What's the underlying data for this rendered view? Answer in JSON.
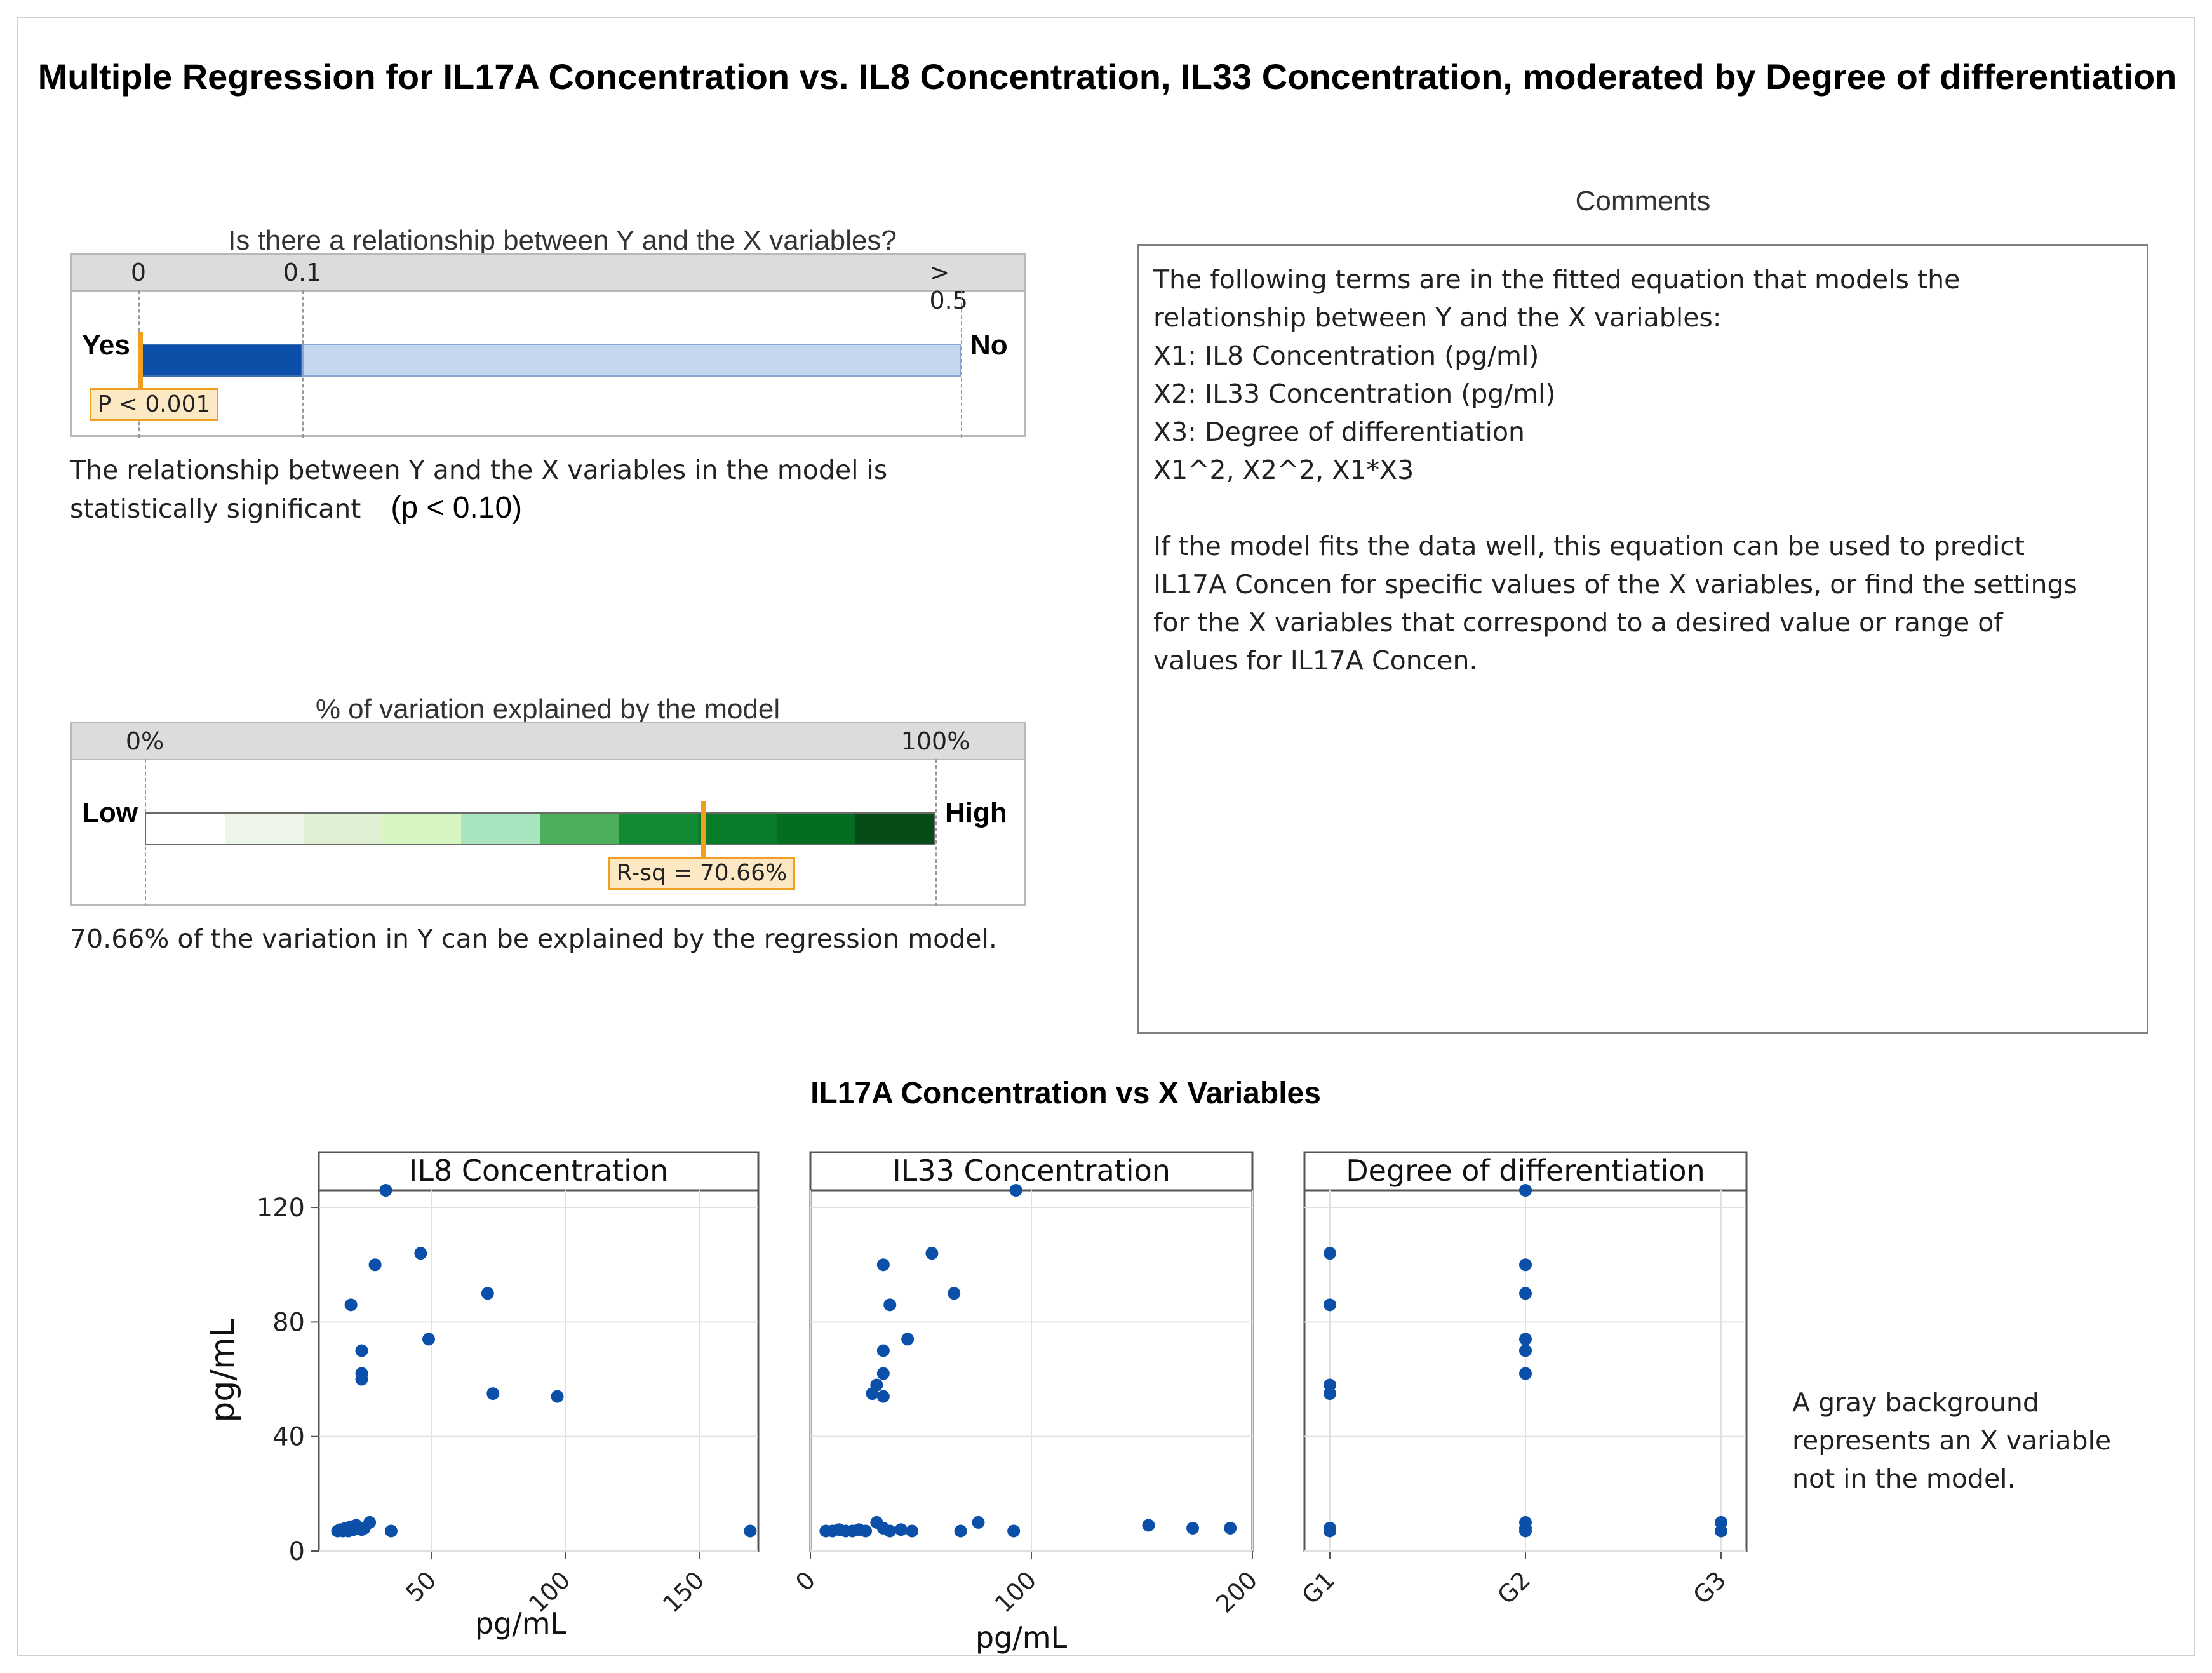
{
  "title": "Multiple Regression for IL17A Concentration vs. IL8 Concentration, IL33 Concentration, moderated by Degree of differentiation",
  "relationship": {
    "heading": "Is there a relationship between Y and the X variables?",
    "scale_ticks": [
      "0",
      "0.1",
      "> 0.5"
    ],
    "left_label": "Yes",
    "right_label": "No",
    "p_label": "P < 0.001",
    "p_value": 0.001,
    "colors": {
      "significant": "#0b4fa8",
      "not_significant": "#c4d6ee",
      "marker": "#f0a020"
    },
    "text": "The relationship between Y and the X variables in the model is statistically significant",
    "p_note": "(p < 0.10)"
  },
  "variation": {
    "heading": "% of variation explained by the model",
    "scale_ticks": [
      "0%",
      "100%"
    ],
    "left_label": "Low",
    "right_label": "High",
    "rsq_label": "R-sq = 70.66%",
    "rsq_percent": 70.66,
    "gradient": [
      "#ffffff",
      "#eef6ea",
      "#dff0d4",
      "#d6f5c0",
      "#a8e4be",
      "#4caf59",
      "#128a34",
      "#097c2a",
      "#056d20",
      "#064b18"
    ],
    "text": "70.66% of the variation in Y can be explained by the regression model."
  },
  "comments": {
    "heading": "Comments",
    "lines": [
      "The following terms are in the fitted equation that models the",
      "relationship between Y and the X variables:",
      "X1: IL8 Concentration (pg/ml)",
      "X2: IL33 Concentration (pg/ml)",
      "X3: Degree of differentiation",
      "X1^2, X2^2, X1*X3",
      "",
      "If the model fits the data well, this equation can be used to predict",
      "IL17A Concen for specific values of the X variables, or find the settings",
      "for the X variables that correspond to a desired value or range of",
      "values for IL17A Concen."
    ]
  },
  "scatter_title": "IL17A Concentration vs X Variables",
  "note": "A gray background represents an X variable not in the model.",
  "chart_data": [
    {
      "type": "scatter",
      "title": "IL8 Concentration",
      "xlabel": "pg/mL",
      "ylabel": "pg/mL",
      "xlim": [
        8,
        172
      ],
      "ylim": [
        0,
        126
      ],
      "xticks": [
        50,
        100,
        150
      ],
      "yticks": [
        0,
        40,
        80,
        120
      ],
      "color": "#0b4fa8",
      "points": [
        [
          15,
          7
        ],
        [
          16,
          7.5
        ],
        [
          17,
          7
        ],
        [
          18,
          8
        ],
        [
          19,
          7
        ],
        [
          20,
          8.5
        ],
        [
          21,
          7.5
        ],
        [
          22,
          9
        ],
        [
          23,
          8
        ],
        [
          24,
          7.5
        ],
        [
          25,
          8
        ],
        [
          27,
          10
        ],
        [
          35,
          7
        ],
        [
          20,
          86
        ],
        [
          24,
          70
        ],
        [
          24,
          62
        ],
        [
          24,
          60
        ],
        [
          29,
          100
        ],
        [
          33,
          126
        ],
        [
          46,
          104
        ],
        [
          49,
          74
        ],
        [
          71,
          90
        ],
        [
          73,
          55
        ],
        [
          97,
          54
        ],
        [
          169,
          7
        ]
      ]
    },
    {
      "type": "scatter",
      "title": "IL33 Concentration",
      "xlabel": "pg/mL",
      "ylabel": "",
      "xlim": [
        0,
        200
      ],
      "ylim": [
        0,
        126
      ],
      "xticks": [
        0,
        100,
        200
      ],
      "yticks": [
        0,
        40,
        80,
        120
      ],
      "color": "#0b4fa8",
      "points": [
        [
          7,
          7
        ],
        [
          10,
          7
        ],
        [
          13,
          7.5
        ],
        [
          16,
          7
        ],
        [
          19,
          7
        ],
        [
          22,
          7.5
        ],
        [
          25,
          7
        ],
        [
          30,
          10
        ],
        [
          33,
          8
        ],
        [
          36,
          7
        ],
        [
          41,
          7.5
        ],
        [
          46,
          7
        ],
        [
          28,
          55
        ],
        [
          30,
          58
        ],
        [
          33,
          54
        ],
        [
          33,
          62
        ],
        [
          33,
          70
        ],
        [
          33,
          100
        ],
        [
          36,
          86
        ],
        [
          44,
          74
        ],
        [
          55,
          104
        ],
        [
          65,
          90
        ],
        [
          68,
          7
        ],
        [
          76,
          10
        ],
        [
          92,
          7
        ],
        [
          93,
          126
        ],
        [
          153,
          9
        ],
        [
          173,
          8
        ],
        [
          190,
          8
        ]
      ]
    },
    {
      "type": "scatter",
      "title": "Degree of differentiation",
      "xlabel": "",
      "ylabel": "",
      "categories": [
        "G1",
        "G2",
        "G3"
      ],
      "ylim": [
        0,
        126
      ],
      "yticks": [
        0,
        40,
        80,
        120
      ],
      "color": "#0b4fa8",
      "points": [
        [
          "G1",
          104
        ],
        [
          "G1",
          86
        ],
        [
          "G1",
          58
        ],
        [
          "G1",
          55
        ],
        [
          "G1",
          8
        ],
        [
          "G1",
          7
        ],
        [
          "G2",
          126
        ],
        [
          "G2",
          100
        ],
        [
          "G2",
          90
        ],
        [
          "G2",
          74
        ],
        [
          "G2",
          70
        ],
        [
          "G2",
          62
        ],
        [
          "G2",
          10
        ],
        [
          "G2",
          8
        ],
        [
          "G2",
          7
        ],
        [
          "G3",
          10
        ],
        [
          "G3",
          7
        ]
      ]
    }
  ]
}
